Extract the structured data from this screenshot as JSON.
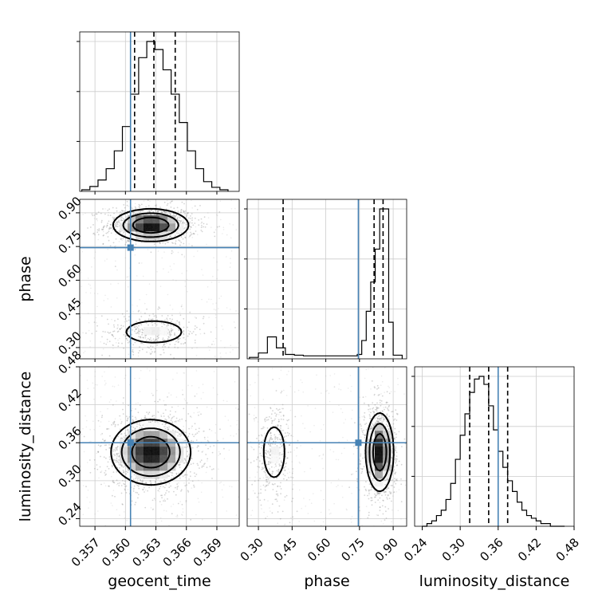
{
  "chart_data": {
    "type": "corner",
    "parameters": [
      "geocent_time",
      "phase",
      "luminosity_distance"
    ],
    "truths": {
      "geocent_time": 0.3605,
      "phase": 0.745,
      "luminosity_distance": 0.36
    },
    "truth_color": "#4682b4",
    "axes": {
      "geocent_time": {
        "range": [
          0.3555,
          0.3712
        ],
        "ticks": [
          "0.357",
          "0.360",
          "0.363",
          "0.366",
          "0.369"
        ],
        "tick_values": [
          0.357,
          0.36,
          0.363,
          0.366,
          0.369
        ]
      },
      "phase": {
        "range": [
          0.25,
          0.96
        ],
        "ticks": [
          "0.30",
          "0.45",
          "0.60",
          "0.75",
          "0.90"
        ],
        "tick_values": [
          0.3,
          0.45,
          0.6,
          0.75,
          0.9
        ]
      },
      "luminosity_distance": {
        "range": [
          0.228,
          0.48
        ],
        "ticks": [
          "0.24",
          "0.30",
          "0.36",
          "0.42",
          "0.48"
        ],
        "tick_values": [
          0.24,
          0.3,
          0.36,
          0.42,
          0.48
        ]
      }
    },
    "histograms": {
      "geocent_time": {
        "bin_edges": [
          0.3557,
          0.3565,
          0.3573,
          0.3581,
          0.3589,
          0.3597,
          0.3605,
          0.3613,
          0.3621,
          0.3629,
          0.3637,
          0.3645,
          0.3653,
          0.3661,
          0.3669,
          0.3677,
          0.3685,
          0.3693,
          0.3701
        ],
        "counts": [
          2,
          6,
          14,
          28,
          50,
          80,
          120,
          165,
          185,
          175,
          150,
          120,
          85,
          50,
          28,
          12,
          5,
          2
        ],
        "quantiles": [
          0.3609,
          0.3628,
          0.3649
        ]
      },
      "phase": {
        "bin_edges": [
          0.26,
          0.3,
          0.34,
          0.38,
          0.42,
          0.46,
          0.5,
          0.54,
          0.58,
          0.62,
          0.66,
          0.7,
          0.74,
          0.76,
          0.78,
          0.8,
          0.82,
          0.84,
          0.86,
          0.88,
          0.9,
          0.94
        ],
        "counts": [
          2,
          8,
          30,
          15,
          6,
          5,
          4,
          4,
          4,
          4,
          4,
          4,
          6,
          25,
          65,
          105,
          150,
          205,
          205,
          50,
          5
        ],
        "quantiles": [
          0.41,
          0.815,
          0.855
        ]
      },
      "luminosity_distance": {
        "bin_edges": [
          0.24,
          0.2475,
          0.255,
          0.2625,
          0.27,
          0.2775,
          0.285,
          0.2925,
          0.3,
          0.3075,
          0.315,
          0.3225,
          0.33,
          0.3375,
          0.345,
          0.3525,
          0.36,
          0.3675,
          0.375,
          0.3825,
          0.39,
          0.3975,
          0.405,
          0.4125,
          0.42,
          0.4275,
          0.435,
          0.4425,
          0.45,
          0.4575,
          0.465
        ],
        "counts": [
          0,
          1,
          2,
          4,
          6,
          10,
          16,
          25,
          34,
          42,
          50,
          55,
          56,
          53,
          45,
          36,
          28,
          22,
          17,
          13,
          9,
          6,
          4,
          3,
          2,
          1,
          1,
          0,
          0,
          0
        ],
        "quantiles": [
          0.315,
          0.345,
          0.375
        ]
      }
    },
    "pairs": [
      {
        "x": "geocent_time",
        "y": "phase",
        "modes": [
          {
            "x": 0.3625,
            "y": 0.845,
            "sx": 0.0018,
            "sy": 0.035,
            "weight": 0.75
          },
          {
            "x": 0.3628,
            "y": 0.37,
            "sx": 0.002,
            "sy": 0.035,
            "weight": 0.25
          }
        ]
      },
      {
        "x": "geocent_time",
        "y": "luminosity_distance",
        "modes": [
          {
            "x": 0.3625,
            "y": 0.345,
            "sx": 0.0019,
            "sy": 0.025,
            "weight": 1.0
          }
        ]
      },
      {
        "x": "phase",
        "y": "luminosity_distance",
        "modes": [
          {
            "x": 0.84,
            "y": 0.345,
            "sx": 0.03,
            "sy": 0.03,
            "weight": 0.75
          },
          {
            "x": 0.37,
            "y": 0.345,
            "sx": 0.035,
            "sy": 0.03,
            "weight": 0.25
          }
        ]
      }
    ],
    "xlabel_bottom": [
      "geocent_time",
      "phase",
      "luminosity_distance"
    ],
    "ylabel_left": [
      "phase",
      "luminosity_distance"
    ],
    "grid": true
  }
}
